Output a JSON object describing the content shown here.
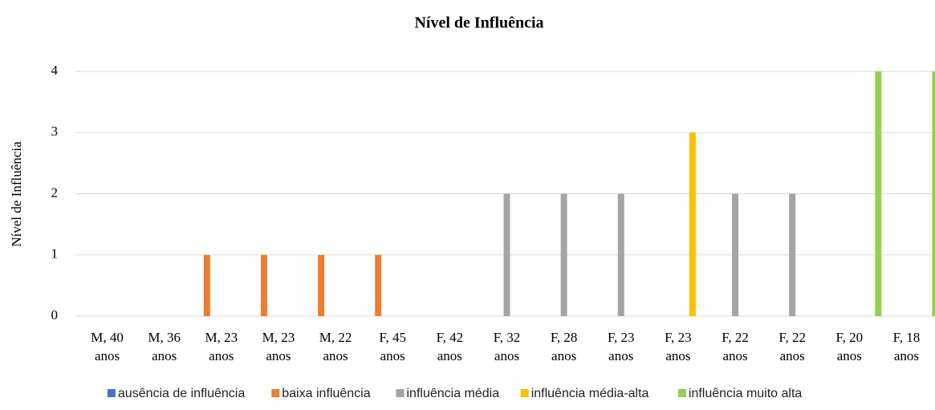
{
  "chart_data": {
    "type": "bar",
    "title": "Nível de Influência",
    "y_label": "Nível de Influência",
    "categories": [
      [
        "M, 40",
        "anos"
      ],
      [
        "M, 36",
        "anos"
      ],
      [
        "M, 23",
        "anos"
      ],
      [
        "M, 23",
        "anos"
      ],
      [
        "M, 22",
        "anos"
      ],
      [
        "F, 45",
        "anos"
      ],
      [
        "F, 42",
        "anos"
      ],
      [
        "F, 32",
        "anos"
      ],
      [
        "F, 28",
        "anos"
      ],
      [
        "F, 23",
        "anos"
      ],
      [
        "F, 23",
        "anos"
      ],
      [
        "F, 22",
        "anos"
      ],
      [
        "F, 22",
        "anos"
      ],
      [
        "F, 20",
        "anos"
      ],
      [
        "F, 18",
        "anos"
      ]
    ],
    "series": [
      {
        "name": "ausência de influência",
        "color": "#4472c4",
        "values": [
          0,
          0,
          null,
          null,
          null,
          null,
          0,
          null,
          null,
          null,
          null,
          null,
          null,
          null,
          null
        ]
      },
      {
        "name": "baixa influência",
        "color": "#ed7d31",
        "values": [
          null,
          null,
          1,
          1,
          1,
          1,
          null,
          null,
          null,
          null,
          null,
          null,
          null,
          null,
          null
        ]
      },
      {
        "name": "influência média",
        "color": "#a5a5a5",
        "values": [
          null,
          null,
          null,
          null,
          null,
          null,
          null,
          2,
          2,
          2,
          null,
          2,
          2,
          null,
          null
        ]
      },
      {
        "name": "influência média-alta",
        "color": "#ffc000",
        "values": [
          null,
          null,
          null,
          null,
          null,
          null,
          null,
          null,
          null,
          null,
          3,
          null,
          null,
          null,
          null
        ]
      },
      {
        "name": "influência muito alta",
        "color": "#92d050",
        "values": [
          null,
          null,
          null,
          null,
          null,
          null,
          null,
          null,
          null,
          null,
          null,
          null,
          null,
          4,
          4
        ]
      }
    ],
    "ylim": [
      0,
      4
    ],
    "yticks": [
      0,
      1,
      2,
      3,
      4
    ],
    "grid": true,
    "legend": "bottom"
  }
}
